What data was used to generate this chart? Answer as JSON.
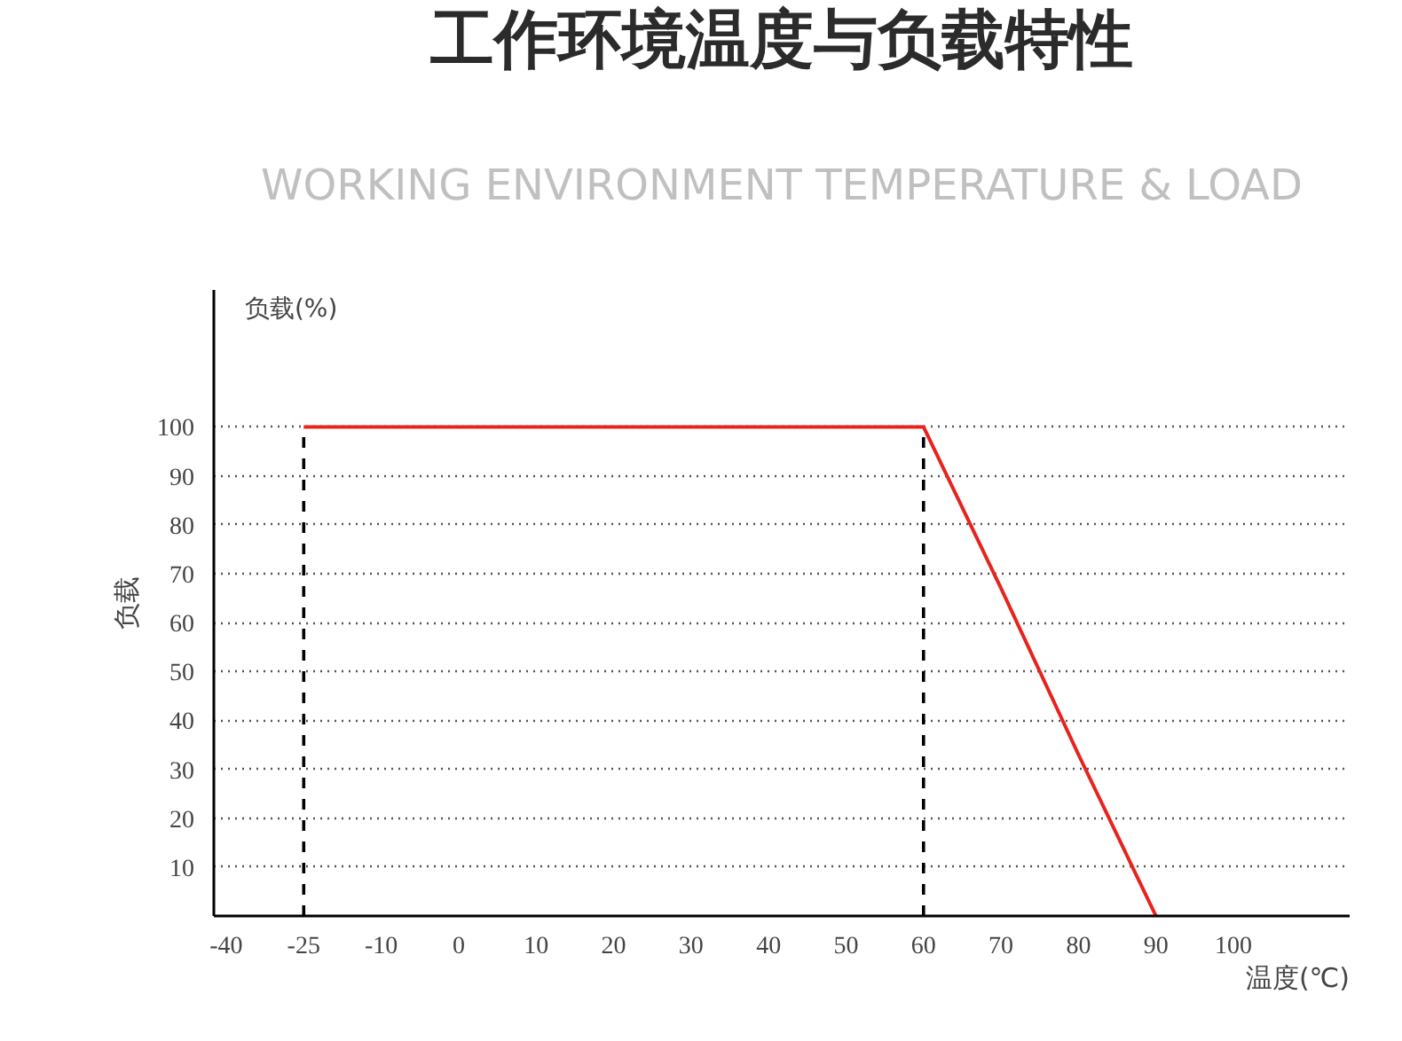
{
  "chart_data": {
    "type": "line",
    "title": "工作环境温度与负载特性",
    "subtitle": "WORKING ENVIRONMENT TEMPERATURE & LOAD",
    "xlabel": "温度(℃)",
    "ylabel": "负载",
    "annotations": [
      "负载(%)"
    ],
    "categories": [
      "-40",
      "-25",
      "-10",
      "0",
      "10",
      "20",
      "30",
      "40",
      "50",
      "60",
      "70",
      "80",
      "90",
      "100"
    ],
    "series": [
      {
        "color": "#e8231e",
        "values": [
          null,
          100,
          100,
          100,
          100,
          100,
          100,
          100,
          100,
          100,
          67,
          33,
          0,
          null
        ]
      }
    ],
    "ylim": [
      0,
      128
    ],
    "yticks": [
      10,
      20,
      30,
      40,
      50,
      60,
      70,
      80,
      90,
      100
    ],
    "grid": "y",
    "line_style": "solid",
    "marker": "none",
    "ref_lines": [
      {
        "axis": "x",
        "value": "-25",
        "color": "#000000",
        "line_style": "dashed"
      },
      {
        "axis": "x",
        "value": "60",
        "color": "#000000",
        "line_style": "dashed"
      }
    ]
  }
}
